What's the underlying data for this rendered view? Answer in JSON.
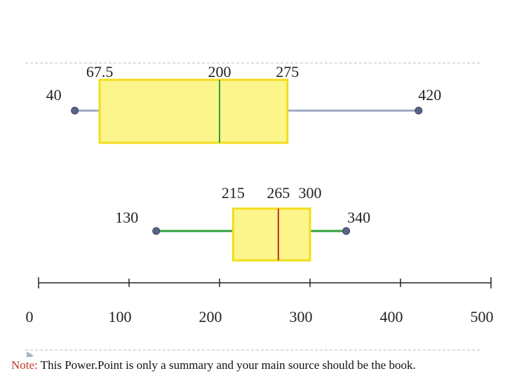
{
  "chart_data": {
    "type": "boxplot",
    "axis": {
      "min": 0,
      "max": 500,
      "ticks": [
        0,
        100,
        200,
        300,
        400,
        500
      ],
      "tick_labels": [
        "0",
        "100",
        "200",
        "300",
        "400",
        "500"
      ]
    },
    "boxes": [
      {
        "min": 40,
        "q1": 67.5,
        "median": 200,
        "q3": 275,
        "max": 420,
        "min_label": "40",
        "q1_label": "67.5",
        "median_label": "200",
        "q3_label": "275",
        "max_label": "420",
        "box_fill": "#fbf58c",
        "box_stroke": "#f2dd1a",
        "whisker_color": "#9aa9c4",
        "median_color": "#2e9e3a",
        "point_color": "#5a6488"
      },
      {
        "min": 130,
        "q1": 215,
        "median": 265,
        "q3": 300,
        "max": 340,
        "min_label": "130",
        "q1_label": "215",
        "median_label": "265",
        "q3_label": "300",
        "max_label": "340",
        "box_fill": "#fbf58c",
        "box_stroke": "#f2dd1a",
        "whisker_color": "#2e9e3a",
        "median_color": "#c0282d",
        "point_color": "#5a6488"
      }
    ]
  },
  "note": {
    "lead": "Note:",
    "text": " This Power.Point is only a summary and your main source should be the book."
  }
}
